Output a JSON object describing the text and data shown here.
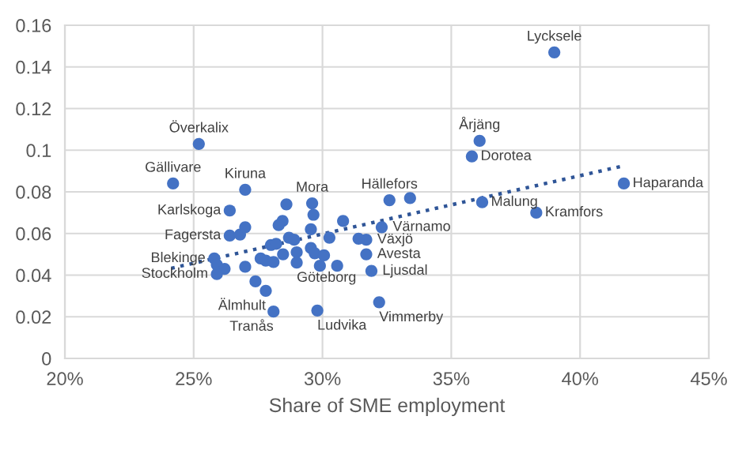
{
  "chart_data": {
    "type": "scatter",
    "xlabel": "Share of SME employment",
    "xlim": [
      0.2,
      0.45
    ],
    "xticks": [
      {
        "value": 0.2,
        "label": "20%"
      },
      {
        "value": 0.25,
        "label": "25%"
      },
      {
        "value": 0.3,
        "label": "30%"
      },
      {
        "value": 0.35,
        "label": "35%"
      },
      {
        "value": 0.4,
        "label": "40%"
      },
      {
        "value": 0.45,
        "label": "45%"
      }
    ],
    "ylim": [
      0,
      0.16
    ],
    "yticks": [
      0,
      0.02,
      0.04,
      0.06,
      0.08,
      0.1,
      0.12,
      0.14,
      0.16
    ],
    "grid": true,
    "legend": false,
    "series": [
      {
        "color": "#4472c4",
        "marker": "circle",
        "x": [
          0.39,
          0.361,
          0.358,
          0.417,
          0.362,
          0.383,
          0.326,
          0.334,
          0.323,
          0.317,
          0.317,
          0.319,
          0.322,
          0.314,
          0.252,
          0.242,
          0.27,
          0.296,
          0.286,
          0.264,
          0.264,
          0.268,
          0.27,
          0.258,
          0.259,
          0.262,
          0.259,
          0.27,
          0.278,
          0.274,
          0.281,
          0.298,
          0.2845,
          0.283,
          0.2965,
          0.308,
          0.2955,
          0.3027,
          0.287,
          0.289,
          0.28,
          0.282,
          0.2955,
          0.297,
          0.3006,
          0.2847,
          0.29,
          0.276,
          0.278,
          0.281,
          0.29,
          0.299,
          0.3057
        ],
        "values": [
          0.147,
          0.1045,
          0.097,
          0.084,
          0.075,
          0.07,
          0.076,
          0.077,
          0.063,
          0.057,
          0.05,
          0.042,
          0.027,
          0.0575,
          0.103,
          0.084,
          0.081,
          0.0745,
          0.074,
          0.071,
          0.059,
          0.0595,
          0.063,
          0.048,
          0.045,
          0.043,
          0.0405,
          0.044,
          0.0325,
          0.037,
          0.0225,
          0.023,
          0.066,
          0.064,
          0.069,
          0.066,
          0.062,
          0.058,
          0.058,
          0.057,
          0.0545,
          0.055,
          0.053,
          0.0505,
          0.0495,
          0.05,
          0.051,
          0.048,
          0.047,
          0.0463,
          0.046,
          0.0445,
          0.0445
        ],
        "value_labels": [
          "Lycksele",
          "Årjäng",
          "Dorotea",
          "Haparanda",
          "Malung",
          "Kramfors",
          "Hällefors",
          null,
          "Värnamo",
          "Växjö",
          "Avesta",
          "Ljusdal",
          "Vimmerby",
          null,
          "Överkalix",
          "Gällivare",
          "Kiruna",
          "Mora",
          null,
          "Karlskoga",
          "Fagersta",
          null,
          null,
          "Blekinge",
          null,
          null,
          "Stockholm",
          null,
          "Älmhult",
          null,
          "Tranås",
          "Ludvika",
          null,
          null,
          null,
          null,
          null,
          null,
          null,
          null,
          null,
          null,
          null,
          null,
          null,
          null,
          null,
          null,
          null,
          null,
          "Göteborg",
          null,
          null
        ]
      },
      {
        "type": "line",
        "color": "#2f5597",
        "line_style": "dotted",
        "marker": "none",
        "x": [
          0.2413,
          0.4162
        ],
        "values": [
          0.0433,
          0.0923
        ]
      }
    ]
  }
}
